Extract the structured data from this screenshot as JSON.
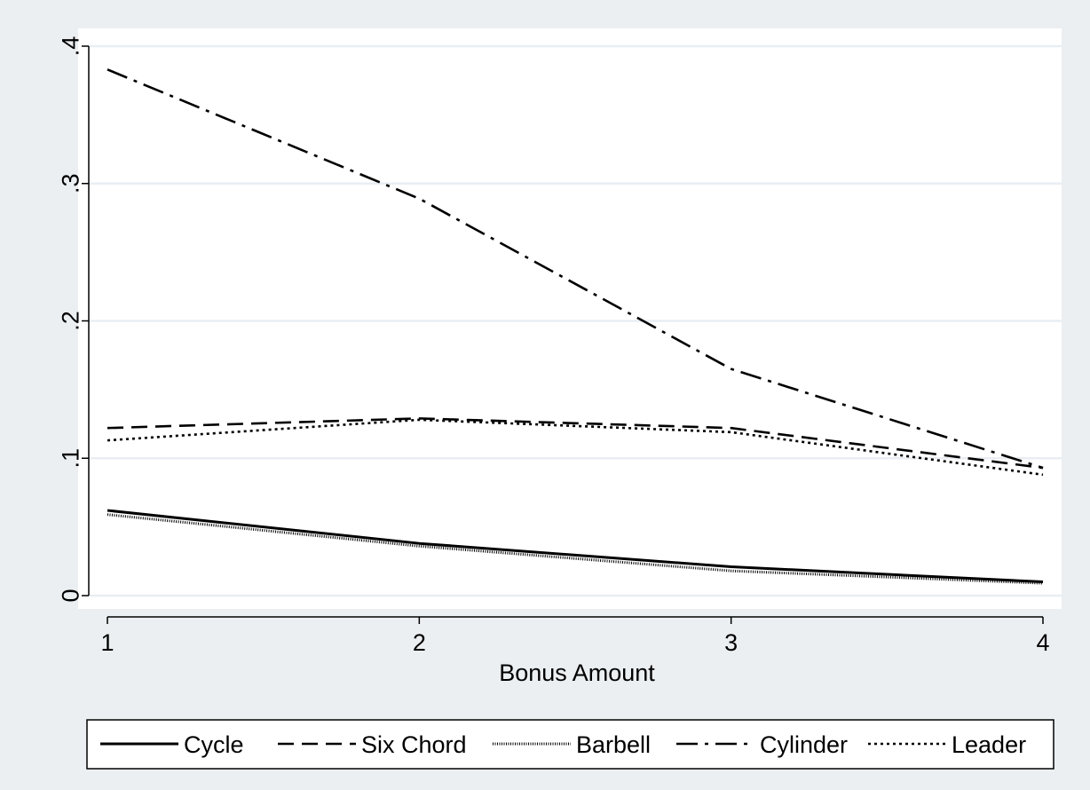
{
  "chart_data": {
    "type": "line",
    "title": "",
    "xlabel": "Bonus Amount",
    "ylabel": "",
    "x": [
      1,
      2,
      3,
      4
    ],
    "xticks": [
      "1",
      "2",
      "3",
      "4"
    ],
    "yticks": [
      {
        "value": 0,
        "label": "0"
      },
      {
        "value": 0.1,
        "label": ".1"
      },
      {
        "value": 0.2,
        "label": ".2"
      },
      {
        "value": 0.3,
        "label": ".3"
      },
      {
        "value": 0.4,
        "label": ".4"
      }
    ],
    "xlim": [
      1,
      4
    ],
    "ylim": [
      0,
      0.4
    ],
    "grid": true,
    "legend_position": "bottom",
    "series": [
      {
        "name": "Cycle",
        "style": "solid",
        "values": [
          0.062,
          0.038,
          0.021,
          0.01
        ]
      },
      {
        "name": "Six Chord",
        "style": "dash",
        "values": [
          0.122,
          0.129,
          0.122,
          0.093
        ]
      },
      {
        "name": "Barbell",
        "style": "fine-dot",
        "values": [
          0.059,
          0.036,
          0.018,
          0.009
        ]
      },
      {
        "name": "Cylinder",
        "style": "dash-dot",
        "values": [
          0.383,
          0.289,
          0.165,
          0.093
        ]
      },
      {
        "name": "Leader",
        "style": "dot",
        "values": [
          0.113,
          0.128,
          0.119,
          0.088
        ]
      }
    ],
    "colors": {
      "background": "#ebeff2",
      "plot_area": "#ffffff",
      "grid": "#e8eef3",
      "line": "#000000"
    }
  }
}
